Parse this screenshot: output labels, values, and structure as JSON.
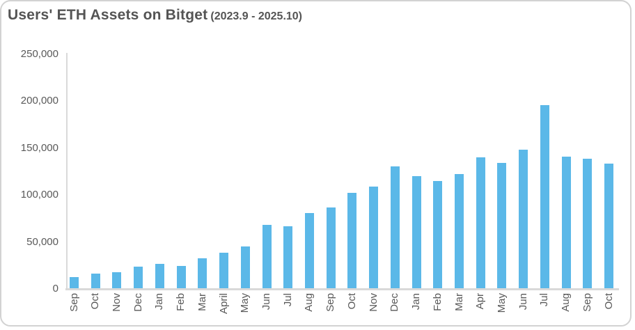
{
  "title": {
    "main": "Users' ETH Assets on Bitget",
    "range": "(2023.9 - 2025.10)"
  },
  "colors": {
    "bar": "#5BB8E8",
    "axis_line": "#D9D9D9",
    "tick_text": "#595959",
    "title_text": "#545454",
    "frame_border": "#D2D2D2",
    "background": "#FFFFFF"
  },
  "chart_data": {
    "type": "bar",
    "title": "Users' ETH Assets on Bitget (2023.9 - 2025.10)",
    "xlabel": "",
    "ylabel": "",
    "grid": false,
    "legend": false,
    "bar_color": "#5BB8E8",
    "ylim": [
      0,
      250000
    ],
    "y_ticks": [
      {
        "value": 0,
        "label": "0"
      },
      {
        "value": 50000,
        "label": "50,000"
      },
      {
        "value": 100000,
        "label": "100,000"
      },
      {
        "value": 150000,
        "label": "150,000"
      },
      {
        "value": 200000,
        "label": "200,000"
      },
      {
        "value": 250000,
        "label": "250,000"
      }
    ],
    "categories": [
      "Sep",
      "Oct",
      "Nov",
      "Dec",
      "Jan",
      "Feb",
      "Mar",
      "April",
      "May",
      "Jun",
      "Jul",
      "Aug",
      "Sep",
      "Oct",
      "Nov",
      "Dec",
      "Jan",
      "Feb",
      "Mar",
      "Apr",
      "May",
      "Jun",
      "Jul",
      "Aug",
      "Sep",
      "Oct"
    ],
    "values": [
      12500,
      16000,
      17500,
      24000,
      26500,
      24500,
      33000,
      38500,
      45500,
      68000,
      66500,
      80500,
      86500,
      102500,
      109000,
      130500,
      120500,
      115000,
      122500,
      140500,
      134000,
      148500,
      195500,
      141000,
      138500,
      133500
    ]
  }
}
